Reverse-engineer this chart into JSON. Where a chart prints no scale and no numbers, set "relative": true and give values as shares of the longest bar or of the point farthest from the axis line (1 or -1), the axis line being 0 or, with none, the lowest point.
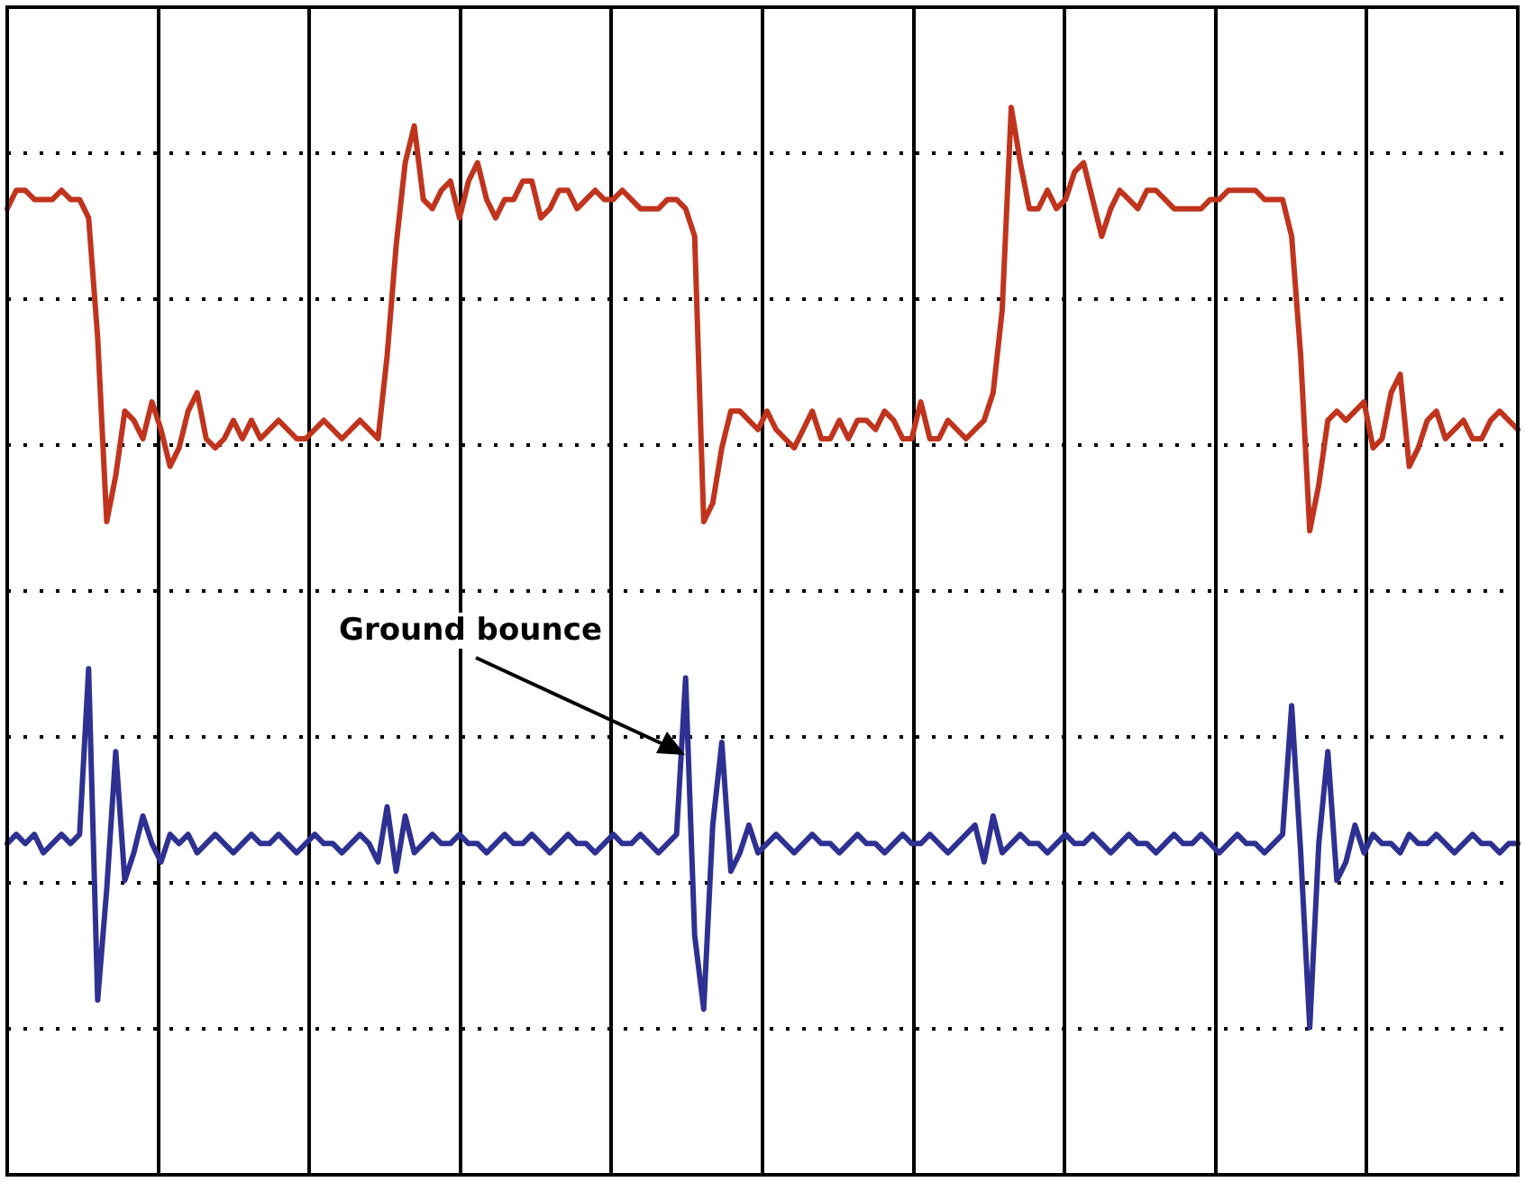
{
  "chart_data": {
    "type": "line",
    "relative": true,
    "grid": true,
    "legend": false,
    "marker": "none",
    "line_style": "solid",
    "annotations": [
      "Ground bounce"
    ],
    "categories": [
      null,
      null,
      null,
      null,
      null,
      null,
      null,
      null,
      null,
      null,
      null,
      null,
      null,
      null,
      null,
      null,
      null,
      null,
      null,
      null,
      null,
      null,
      null,
      null,
      null,
      null,
      null,
      null,
      null,
      null,
      null,
      null,
      null,
      null,
      null,
      null,
      null,
      null,
      null,
      null,
      null,
      null,
      null,
      null,
      null,
      null,
      null,
      null,
      null,
      null,
      null,
      null,
      null,
      null,
      null,
      null,
      null,
      null,
      null,
      null,
      null,
      null,
      null,
      null,
      null,
      null,
      null,
      null,
      null,
      null,
      null,
      null,
      null,
      null,
      null,
      null,
      null,
      null,
      null,
      null,
      null,
      null,
      null,
      null,
      null,
      null,
      null,
      null,
      null,
      null,
      null,
      null,
      null,
      null,
      null,
      null,
      null,
      null,
      null,
      null,
      null,
      null,
      null,
      null,
      null,
      null,
      null,
      null,
      null,
      null,
      null,
      null,
      null,
      null,
      null,
      null,
      null,
      null,
      null,
      null,
      null,
      null,
      null,
      null,
      null,
      null,
      null,
      null,
      null,
      null,
      null,
      null,
      null,
      null,
      null,
      null,
      null,
      null,
      null,
      null,
      null,
      null,
      null,
      null,
      null,
      null,
      null,
      null,
      null,
      null,
      null,
      null,
      null,
      null,
      null,
      null,
      null,
      null,
      null,
      null,
      null,
      null,
      null,
      null,
      null,
      null,
      null,
      null
    ],
    "series": [
      {
        "color": "#c0341d",
        "values": [
          0.89,
          0.91,
          0.91,
          0.9,
          0.9,
          0.9,
          0.91,
          0.9,
          0.9,
          0.88,
          0.75,
          0.55,
          0.6,
          0.67,
          0.66,
          0.64,
          0.68,
          0.65,
          0.61,
          0.63,
          0.67,
          0.69,
          0.64,
          0.63,
          0.64,
          0.66,
          0.64,
          0.66,
          0.64,
          0.65,
          0.66,
          0.65,
          0.64,
          0.64,
          0.65,
          0.66,
          0.65,
          0.64,
          0.65,
          0.66,
          0.65,
          0.64,
          0.73,
          0.85,
          0.94,
          0.98,
          0.9,
          0.89,
          0.91,
          0.92,
          0.88,
          0.92,
          0.94,
          0.9,
          0.88,
          0.9,
          0.9,
          0.92,
          0.92,
          0.88,
          0.89,
          0.91,
          0.91,
          0.89,
          0.9,
          0.91,
          0.9,
          0.9,
          0.91,
          0.9,
          0.89,
          0.89,
          0.89,
          0.9,
          0.9,
          0.89,
          0.86,
          0.55,
          0.57,
          0.63,
          0.67,
          0.67,
          0.66,
          0.65,
          0.67,
          0.65,
          0.64,
          0.63,
          0.65,
          0.67,
          0.64,
          0.64,
          0.66,
          0.64,
          0.66,
          0.66,
          0.65,
          0.67,
          0.66,
          0.64,
          0.64,
          0.68,
          0.64,
          0.64,
          0.66,
          0.65,
          0.64,
          0.65,
          0.66,
          0.69,
          0.78,
          1.0,
          0.94,
          0.89,
          0.89,
          0.91,
          0.89,
          0.9,
          0.93,
          0.94,
          0.9,
          0.86,
          0.89,
          0.91,
          0.9,
          0.89,
          0.91,
          0.91,
          0.9,
          0.89,
          0.89,
          0.89,
          0.89,
          0.9,
          0.9,
          0.91,
          0.91,
          0.91,
          0.91,
          0.9,
          0.9,
          0.9,
          0.86,
          0.73,
          0.54,
          0.59,
          0.66,
          0.67,
          0.66,
          0.67,
          0.68,
          0.63,
          0.64,
          0.69,
          0.71,
          0.61,
          0.63,
          0.66,
          0.67,
          0.64,
          0.65,
          0.66,
          0.64,
          0.64,
          0.66,
          0.67,
          0.66,
          0.65
        ]
      },
      {
        "color": "#2e3192",
        "values": [
          0.2,
          0.21,
          0.2,
          0.21,
          0.19,
          0.2,
          0.21,
          0.2,
          0.21,
          0.39,
          0.03,
          0.15,
          0.3,
          0.16,
          0.19,
          0.23,
          0.2,
          0.18,
          0.21,
          0.2,
          0.21,
          0.19,
          0.2,
          0.21,
          0.2,
          0.19,
          0.2,
          0.21,
          0.2,
          0.2,
          0.21,
          0.2,
          0.19,
          0.2,
          0.21,
          0.2,
          0.2,
          0.19,
          0.2,
          0.21,
          0.2,
          0.18,
          0.24,
          0.17,
          0.23,
          0.19,
          0.2,
          0.21,
          0.2,
          0.2,
          0.21,
          0.2,
          0.2,
          0.19,
          0.2,
          0.21,
          0.2,
          0.2,
          0.21,
          0.2,
          0.19,
          0.2,
          0.21,
          0.2,
          0.2,
          0.19,
          0.2,
          0.21,
          0.2,
          0.2,
          0.21,
          0.2,
          0.19,
          0.2,
          0.21,
          0.38,
          0.1,
          0.02,
          0.22,
          0.31,
          0.17,
          0.19,
          0.22,
          0.19,
          0.2,
          0.21,
          0.2,
          0.19,
          0.2,
          0.21,
          0.2,
          0.2,
          0.19,
          0.2,
          0.21,
          0.2,
          0.2,
          0.19,
          0.2,
          0.21,
          0.2,
          0.2,
          0.21,
          0.2,
          0.19,
          0.2,
          0.21,
          0.22,
          0.18,
          0.23,
          0.19,
          0.2,
          0.21,
          0.2,
          0.2,
          0.19,
          0.2,
          0.21,
          0.2,
          0.2,
          0.21,
          0.2,
          0.19,
          0.2,
          0.21,
          0.2,
          0.2,
          0.19,
          0.2,
          0.21,
          0.2,
          0.2,
          0.21,
          0.2,
          0.19,
          0.2,
          0.21,
          0.2,
          0.2,
          0.19,
          0.2,
          0.21,
          0.35,
          0.19,
          0.0,
          0.2,
          0.3,
          0.16,
          0.18,
          0.22,
          0.19,
          0.21,
          0.2,
          0.2,
          0.19,
          0.21,
          0.2,
          0.2,
          0.21,
          0.2,
          0.19,
          0.2,
          0.21,
          0.2,
          0.2,
          0.19,
          0.2,
          0.2
        ]
      }
    ]
  }
}
